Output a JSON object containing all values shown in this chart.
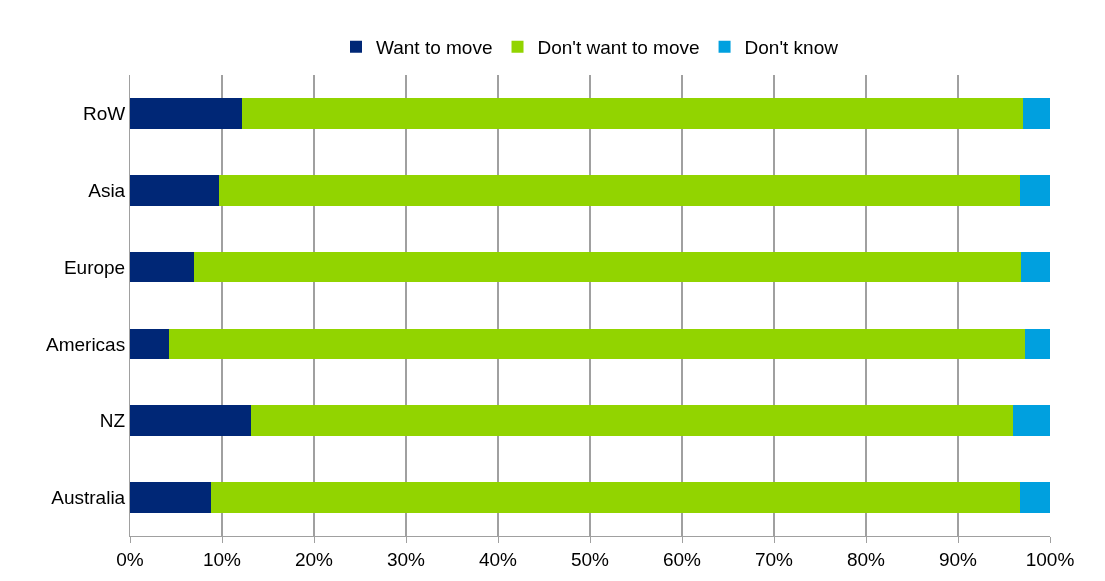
{
  "chart_data": {
    "type": "bar",
    "orientation": "horizontal",
    "stacked": true,
    "categories": [
      "RoW",
      "Asia",
      "Europe",
      "Americas",
      "NZ",
      "Australia"
    ],
    "series": [
      {
        "name": "Want to move",
        "color": "#002776",
        "values": [
          12.2,
          9.7,
          7.0,
          4.2,
          13.1,
          8.8
        ]
      },
      {
        "name": "Don't want to move",
        "color": "#92d400",
        "values": [
          84.9,
          87.0,
          89.9,
          93.1,
          82.9,
          87.9
        ]
      },
      {
        "name": "Don't know",
        "color": "#00a0df",
        "values": [
          2.9,
          3.3,
          3.1,
          2.7,
          4.0,
          3.3
        ]
      }
    ],
    "xlim": [
      0,
      100
    ],
    "xticks": [
      {
        "value": 0,
        "label": "0%"
      },
      {
        "value": 10,
        "label": "10%"
      },
      {
        "value": 20,
        "label": "20%"
      },
      {
        "value": 30,
        "label": "30%"
      },
      {
        "value": 40,
        "label": "40%"
      },
      {
        "value": 50,
        "label": "50%"
      },
      {
        "value": 60,
        "label": "60%"
      },
      {
        "value": 70,
        "label": "70%"
      },
      {
        "value": 80,
        "label": "80%"
      },
      {
        "value": 90,
        "label": "90%"
      },
      {
        "value": 100,
        "label": "100%"
      }
    ],
    "grid": "x",
    "legend": "top"
  }
}
